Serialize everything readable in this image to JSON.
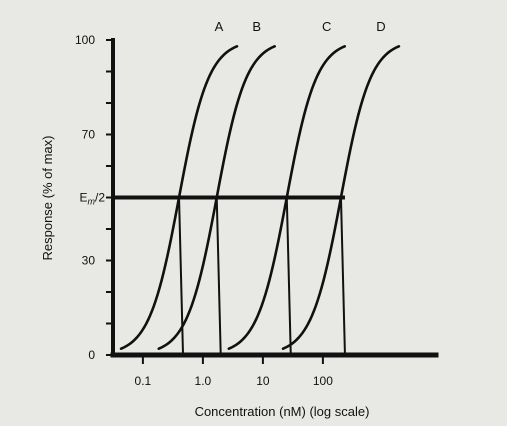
{
  "chart_data": {
    "type": "line",
    "title": "",
    "xlabel": "Concentration (nM) (log scale)",
    "ylabel": "Response (% of max)",
    "x_scale": "log",
    "xlim": [
      0.03,
      3000
    ],
    "ylim": [
      0,
      100
    ],
    "x_tick_labels": [
      "0.1",
      "1.0",
      "10",
      "100"
    ],
    "x_ticks": [
      0.1,
      1.0,
      10,
      100
    ],
    "y_tick_labels": [
      "0",
      "30",
      "70",
      "100"
    ],
    "y_ticks": [
      0,
      30,
      50,
      70,
      100
    ],
    "half_max_label": "E",
    "half_max_subscript": "m",
    "half_max_suffix": "/2",
    "half_max_value": 50,
    "curve_low": 2,
    "curve_high": 98,
    "series": [
      {
        "name": "A",
        "ec50": 0.4
      },
      {
        "name": "B",
        "ec50": 1.7
      },
      {
        "name": "C",
        "ec50": 25
      },
      {
        "name": "D",
        "ec50": 200
      }
    ],
    "hill_slope": 1.75,
    "grid": false,
    "line_color": "#111111"
  }
}
